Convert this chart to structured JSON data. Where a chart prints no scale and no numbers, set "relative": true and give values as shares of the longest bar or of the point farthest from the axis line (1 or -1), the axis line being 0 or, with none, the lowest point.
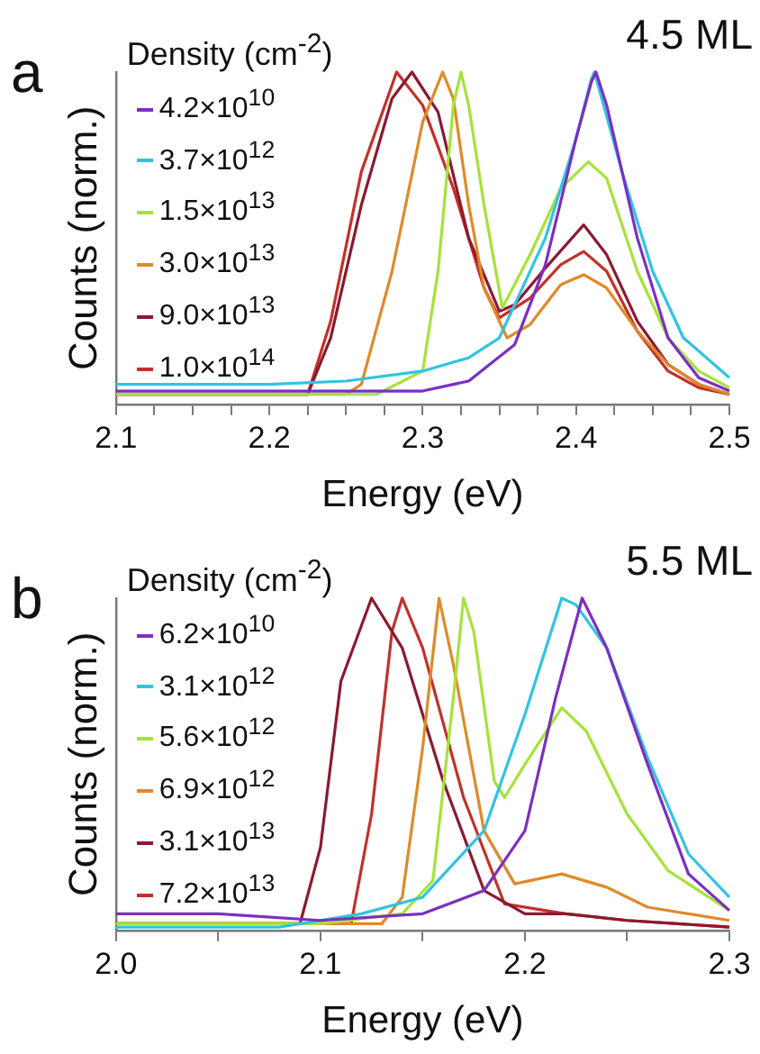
{
  "chart_data": [
    {
      "type": "line",
      "title": "a",
      "annotations": [
        "4.5 ML"
      ],
      "xlabel": "Energy (eV)",
      "ylabel": "Counts (norm.)",
      "legend_title": "Density (cm$^{-2}$)",
      "legend": "top left",
      "relative": true,
      "marker": "none",
      "line_style": "solid",
      "grid": false,
      "xlim": [
        2.1,
        2.5
      ],
      "xticks": [
        2.1,
        {
          "value": 2.125,
          "label": null
        },
        {
          "value": 2.15,
          "label": null
        },
        {
          "value": 2.175,
          "label": null
        },
        2.2,
        {
          "value": 2.225,
          "label": null
        },
        {
          "value": 2.25,
          "label": null
        },
        {
          "value": 2.275,
          "label": null
        },
        2.3,
        {
          "value": 2.325,
          "label": null
        },
        {
          "value": 2.35,
          "label": null
        },
        {
          "value": 2.375,
          "label": null
        },
        2.4,
        {
          "value": 2.425,
          "label": null
        },
        {
          "value": 2.45,
          "label": null
        },
        {
          "value": 2.475,
          "label": null
        },
        2.5
      ],
      "series": [
        {
          "name": "4.2×10$^{10}$",
          "color": "#7b2fc0",
          "x": [
            2.1,
            2.2,
            2.25,
            2.3,
            2.33,
            2.36,
            2.38,
            2.4,
            2.41,
            2.413,
            2.42,
            2.44,
            2.46,
            2.48,
            2.5
          ],
          "values": [
            0.04,
            0.04,
            0.04,
            0.04,
            0.07,
            0.18,
            0.42,
            0.8,
            0.97,
            1.0,
            0.9,
            0.5,
            0.2,
            0.08,
            0.04
          ]
        },
        {
          "name": "3.7×10$^{12}$",
          "color": "#30c4e0",
          "x": [
            2.1,
            2.2,
            2.25,
            2.3,
            2.33,
            2.35,
            2.38,
            2.4,
            2.41,
            2.412,
            2.43,
            2.45,
            2.47,
            2.5
          ],
          "values": [
            0.06,
            0.06,
            0.07,
            0.1,
            0.14,
            0.2,
            0.5,
            0.8,
            0.98,
            1.0,
            0.7,
            0.4,
            0.2,
            0.08
          ]
        },
        {
          "name": "1.5×10$^{13}$",
          "color": "#a6e23a",
          "x": [
            2.1,
            2.27,
            2.3,
            2.31,
            2.32,
            2.325,
            2.33,
            2.34,
            2.352,
            2.37,
            2.39,
            2.408,
            2.42,
            2.44,
            2.46,
            2.48,
            2.5
          ],
          "values": [
            0.03,
            0.03,
            0.1,
            0.4,
            0.9,
            1.0,
            0.9,
            0.6,
            0.29,
            0.45,
            0.65,
            0.73,
            0.68,
            0.4,
            0.2,
            0.1,
            0.05
          ]
        },
        {
          "name": "3.0×10$^{13}$",
          "color": "#e0892a",
          "x": [
            2.1,
            2.25,
            2.26,
            2.28,
            2.3,
            2.313,
            2.32,
            2.33,
            2.34,
            2.355,
            2.37,
            2.39,
            2.405,
            2.42,
            2.44,
            2.46,
            2.48,
            2.5
          ],
          "values": [
            0.03,
            0.03,
            0.06,
            0.4,
            0.85,
            1.0,
            0.92,
            0.6,
            0.35,
            0.2,
            0.24,
            0.36,
            0.39,
            0.35,
            0.22,
            0.12,
            0.06,
            0.03
          ]
        },
        {
          "name": "9.0×10$^{13}$",
          "color": "#8a1a30",
          "x": [
            2.1,
            2.225,
            2.24,
            2.26,
            2.28,
            2.293,
            2.31,
            2.33,
            2.35,
            2.36,
            2.38,
            2.405,
            2.42,
            2.44,
            2.46,
            2.48,
            2.5
          ],
          "values": [
            0.03,
            0.03,
            0.2,
            0.6,
            0.92,
            1.0,
            0.88,
            0.5,
            0.28,
            0.3,
            0.41,
            0.54,
            0.45,
            0.25,
            0.12,
            0.06,
            0.03
          ]
        },
        {
          "name": "1.0×10$^{14}$",
          "color": "#c2302a",
          "x": [
            2.1,
            2.225,
            2.24,
            2.26,
            2.283,
            2.3,
            2.32,
            2.34,
            2.35,
            2.37,
            2.39,
            2.405,
            2.42,
            2.44,
            2.46,
            2.48,
            2.5
          ],
          "values": [
            0.03,
            0.03,
            0.25,
            0.7,
            1.0,
            0.9,
            0.65,
            0.35,
            0.26,
            0.32,
            0.42,
            0.46,
            0.4,
            0.22,
            0.1,
            0.05,
            0.03
          ]
        }
      ]
    },
    {
      "type": "line",
      "title": "b",
      "annotations": [
        "5.5 ML"
      ],
      "xlabel": "Energy (eV)",
      "ylabel": "Counts (norm.)",
      "legend_title": "Density (cm$^{-2}$)",
      "legend": "top left",
      "relative": true,
      "marker": "none",
      "line_style": "solid",
      "grid": false,
      "xlim": [
        2.0,
        2.3
      ],
      "xticks": [
        {
          "value": 2.0,
          "label": "2.0"
        },
        {
          "value": 2.05,
          "label": null
        },
        2.1,
        {
          "value": 2.15,
          "label": null
        },
        2.2,
        {
          "value": 2.25,
          "label": null
        },
        2.3
      ],
      "series": [
        {
          "name": "6.2×10$^{10}$",
          "color": "#7b2fc0",
          "x": [
            2.0,
            2.05,
            2.1,
            2.15,
            2.18,
            2.2,
            2.215,
            2.228,
            2.24,
            2.26,
            2.28,
            2.3
          ],
          "values": [
            0.05,
            0.05,
            0.03,
            0.05,
            0.12,
            0.3,
            0.7,
            1.0,
            0.85,
            0.5,
            0.17,
            0.06
          ]
        },
        {
          "name": "3.1×10$^{12}$",
          "color": "#30c4e0",
          "x": [
            2.0,
            2.08,
            2.12,
            2.15,
            2.18,
            2.2,
            2.218,
            2.225,
            2.24,
            2.26,
            2.28,
            2.3
          ],
          "values": [
            0.01,
            0.01,
            0.05,
            0.1,
            0.3,
            0.65,
            1.0,
            0.98,
            0.85,
            0.52,
            0.23,
            0.1
          ]
        },
        {
          "name": "5.6×10$^{12}$",
          "color": "#a6e23a",
          "x": [
            2.0,
            2.1,
            2.14,
            2.155,
            2.165,
            2.17,
            2.175,
            2.185,
            2.19,
            2.2,
            2.218,
            2.23,
            2.25,
            2.27,
            2.3
          ],
          "values": [
            0.02,
            0.02,
            0.05,
            0.15,
            0.7,
            1.0,
            0.9,
            0.45,
            0.4,
            0.5,
            0.67,
            0.6,
            0.35,
            0.18,
            0.06
          ]
        },
        {
          "name": "6.9×10$^{12}$",
          "color": "#e0892a",
          "x": [
            2.0,
            2.13,
            2.14,
            2.15,
            2.158,
            2.165,
            2.18,
            2.195,
            2.218,
            2.24,
            2.26,
            2.3
          ],
          "values": [
            0.02,
            0.02,
            0.1,
            0.55,
            1.0,
            0.8,
            0.3,
            0.14,
            0.17,
            0.13,
            0.07,
            0.03
          ]
        },
        {
          "name": "3.1×10$^{13}$",
          "color": "#8a1a30",
          "x": [
            2.0,
            2.09,
            2.1,
            2.11,
            2.125,
            2.14,
            2.16,
            2.18,
            2.2,
            2.22,
            2.25,
            2.3
          ],
          "values": [
            0.02,
            0.02,
            0.25,
            0.75,
            1.0,
            0.85,
            0.45,
            0.12,
            0.05,
            0.05,
            0.03,
            0.01
          ]
        },
        {
          "name": "7.2×10$^{13}$",
          "color": "#c2302a",
          "x": [
            2.0,
            2.115,
            2.125,
            2.135,
            2.14,
            2.15,
            2.17,
            2.19,
            2.22,
            2.25,
            2.3
          ],
          "values": [
            0.02,
            0.02,
            0.35,
            0.9,
            1.0,
            0.85,
            0.4,
            0.08,
            0.05,
            0.03,
            0.01
          ]
        }
      ]
    }
  ]
}
